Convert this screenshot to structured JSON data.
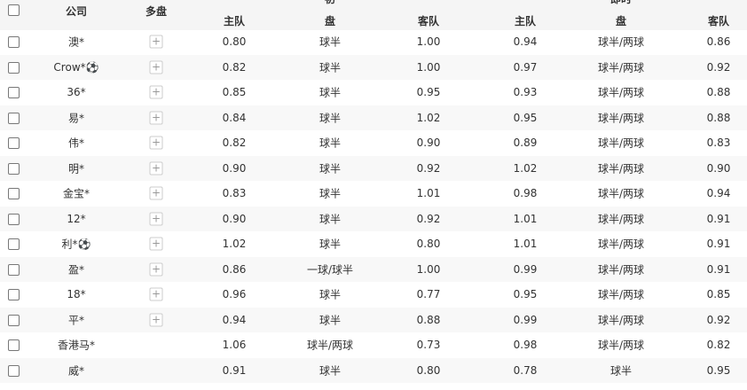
{
  "header": {
    "company": "公司",
    "multi": "多盘",
    "initial_group": "初",
    "live_group": "即时",
    "home": "主队",
    "line": "盘",
    "away": "客队"
  },
  "rows": [
    {
      "company": "澳*",
      "multi": true,
      "i_home": "0.80",
      "i_line": "球半",
      "i_away": "1.00",
      "l_home": "0.94",
      "l_line": "球半/两球",
      "l_away": "0.86"
    },
    {
      "company": "Crow*⚽",
      "multi": true,
      "i_home": "0.82",
      "i_line": "球半",
      "i_away": "1.00",
      "l_home": "0.97",
      "l_line": "球半/两球",
      "l_away": "0.92"
    },
    {
      "company": "36*",
      "multi": true,
      "i_home": "0.85",
      "i_line": "球半",
      "i_away": "0.95",
      "l_home": "0.93",
      "l_line": "球半/两球",
      "l_away": "0.88"
    },
    {
      "company": "易*",
      "multi": true,
      "i_home": "0.84",
      "i_line": "球半",
      "i_away": "1.02",
      "l_home": "0.95",
      "l_line": "球半/两球",
      "l_away": "0.88"
    },
    {
      "company": "伟*",
      "multi": true,
      "i_home": "0.82",
      "i_line": "球半",
      "i_away": "0.90",
      "l_home": "0.89",
      "l_line": "球半/两球",
      "l_away": "0.83"
    },
    {
      "company": "明*",
      "multi": true,
      "i_home": "0.90",
      "i_line": "球半",
      "i_away": "0.92",
      "l_home": "1.02",
      "l_line": "球半/两球",
      "l_away": "0.90"
    },
    {
      "company": "金宝*",
      "multi": true,
      "i_home": "0.83",
      "i_line": "球半",
      "i_away": "1.01",
      "l_home": "0.98",
      "l_line": "球半/两球",
      "l_away": "0.94"
    },
    {
      "company": "12*",
      "multi": true,
      "i_home": "0.90",
      "i_line": "球半",
      "i_away": "0.92",
      "l_home": "1.01",
      "l_line": "球半/两球",
      "l_away": "0.91"
    },
    {
      "company": "利*⚽",
      "multi": true,
      "i_home": "1.02",
      "i_line": "球半",
      "i_away": "0.80",
      "l_home": "1.01",
      "l_line": "球半/两球",
      "l_away": "0.91"
    },
    {
      "company": "盈*",
      "multi": true,
      "i_home": "0.86",
      "i_line": "一球/球半",
      "i_away": "1.00",
      "l_home": "0.99",
      "l_line": "球半/两球",
      "l_away": "0.91"
    },
    {
      "company": "18*",
      "multi": true,
      "i_home": "0.96",
      "i_line": "球半",
      "i_away": "0.77",
      "l_home": "0.95",
      "l_line": "球半/两球",
      "l_away": "0.85"
    },
    {
      "company": "平*",
      "multi": true,
      "i_home": "0.94",
      "i_line": "球半",
      "i_away": "0.88",
      "l_home": "0.99",
      "l_line": "球半/两球",
      "l_away": "0.92"
    },
    {
      "company": "香港马*",
      "multi": false,
      "i_home": "1.06",
      "i_line": "球半/两球",
      "i_away": "0.73",
      "l_home": "0.98",
      "l_line": "球半/两球",
      "l_away": "0.82"
    },
    {
      "company": "威*",
      "multi": false,
      "i_home": "0.91",
      "i_line": "球半",
      "i_away": "0.80",
      "l_home": "0.78",
      "l_line": "球半",
      "l_away": "0.95"
    }
  ],
  "multi_icon": "plus-icon"
}
